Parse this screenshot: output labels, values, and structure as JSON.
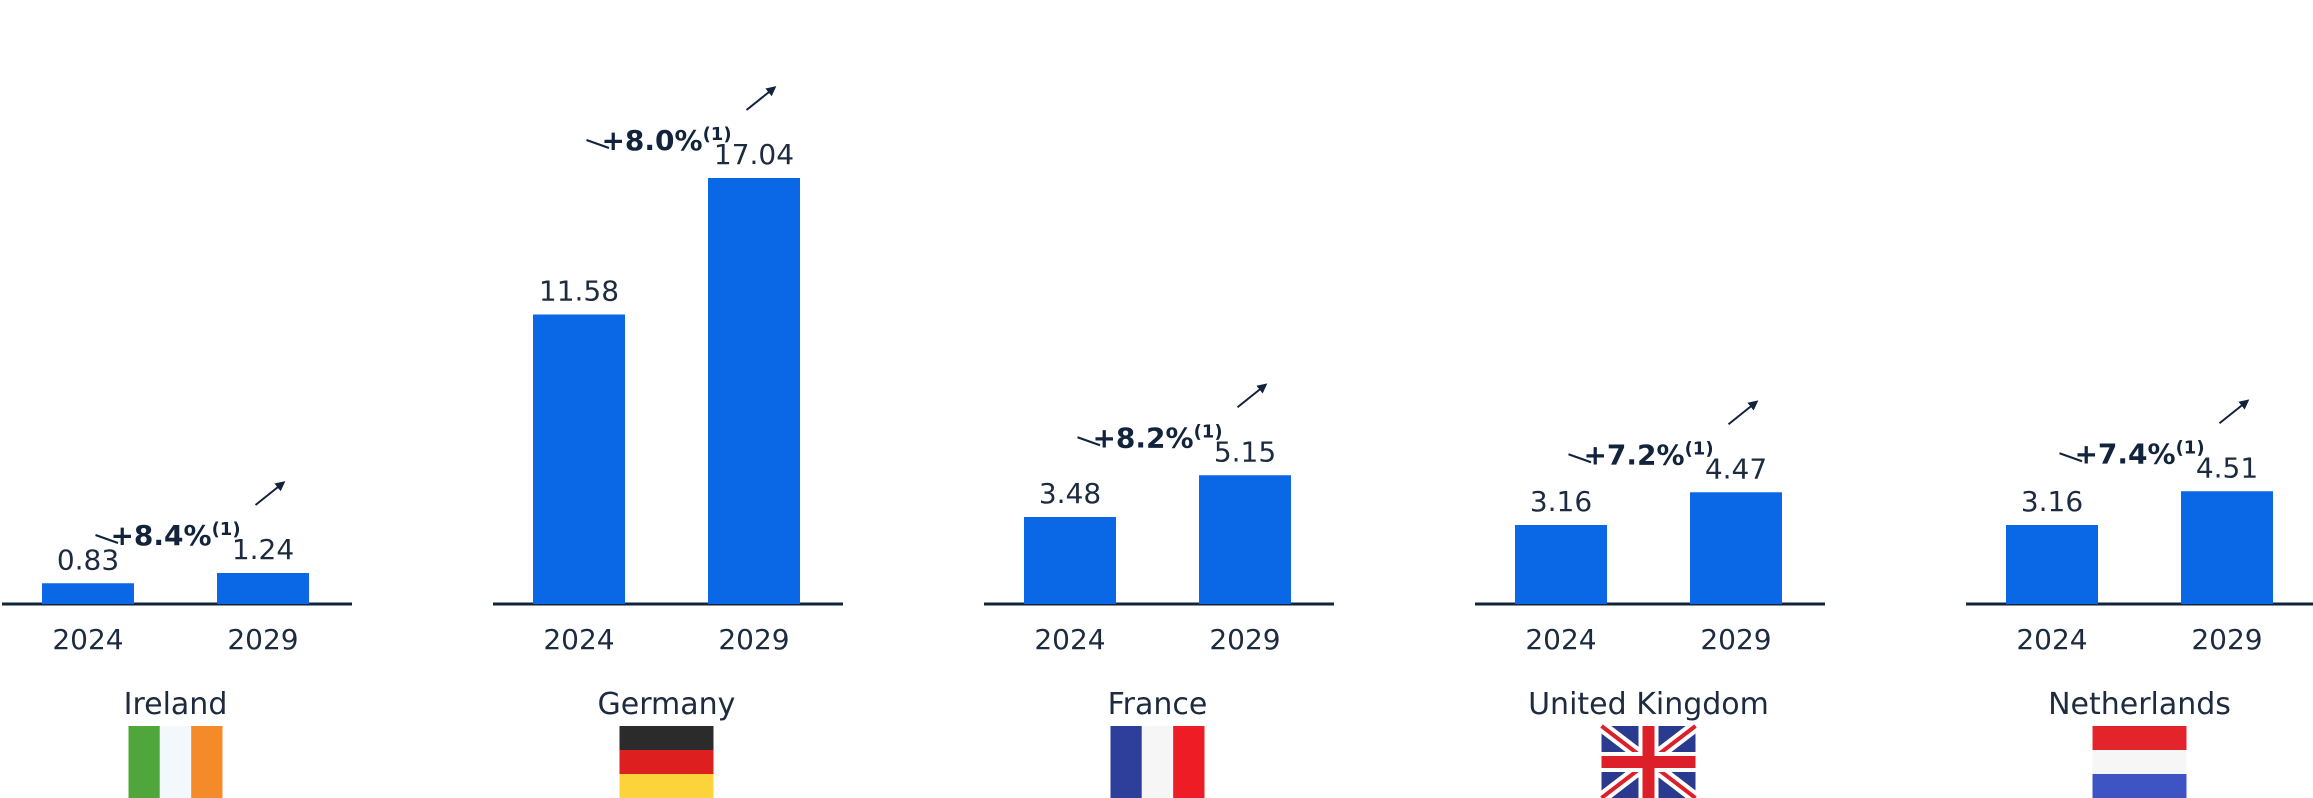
{
  "chart_data": {
    "type": "bar",
    "bar_color": "#0a68e6",
    "axis_color": "#12233c",
    "text_color": "#1c2b3f",
    "years": [
      "2024",
      "2029"
    ],
    "groups": [
      {
        "country": "Ireland",
        "values": [
          0.83,
          1.24
        ],
        "value_labels": [
          "0.83",
          "1.24"
        ],
        "growth": "+8.4%",
        "growth_note": "(1)",
        "flag": "ireland-flag"
      },
      {
        "country": "Germany",
        "values": [
          11.58,
          17.04
        ],
        "value_labels": [
          "11.58",
          "17.04"
        ],
        "growth": "+8.0%",
        "growth_note": "(1)",
        "flag": "germany-flag"
      },
      {
        "country": "France",
        "values": [
          3.48,
          5.15
        ],
        "value_labels": [
          "3.48",
          "5.15"
        ],
        "growth": "+8.2%",
        "growth_note": "(1)",
        "flag": "france-flag"
      },
      {
        "country": "United Kingdom",
        "values": [
          3.16,
          4.47
        ],
        "value_labels": [
          "3.16",
          "4.47"
        ],
        "growth": "+7.2%",
        "growth_note": "(1)",
        "flag": "uk-flag"
      },
      {
        "country": "Netherlands",
        "values": [
          3.16,
          4.51
        ],
        "value_labels": [
          "3.16",
          "4.51"
        ],
        "growth": "+7.4%",
        "growth_note": "(1)",
        "flag": "netherlands-flag"
      }
    ],
    "title": "",
    "xlabel": "",
    "ylabel": "",
    "grid": false,
    "legend": "none"
  }
}
